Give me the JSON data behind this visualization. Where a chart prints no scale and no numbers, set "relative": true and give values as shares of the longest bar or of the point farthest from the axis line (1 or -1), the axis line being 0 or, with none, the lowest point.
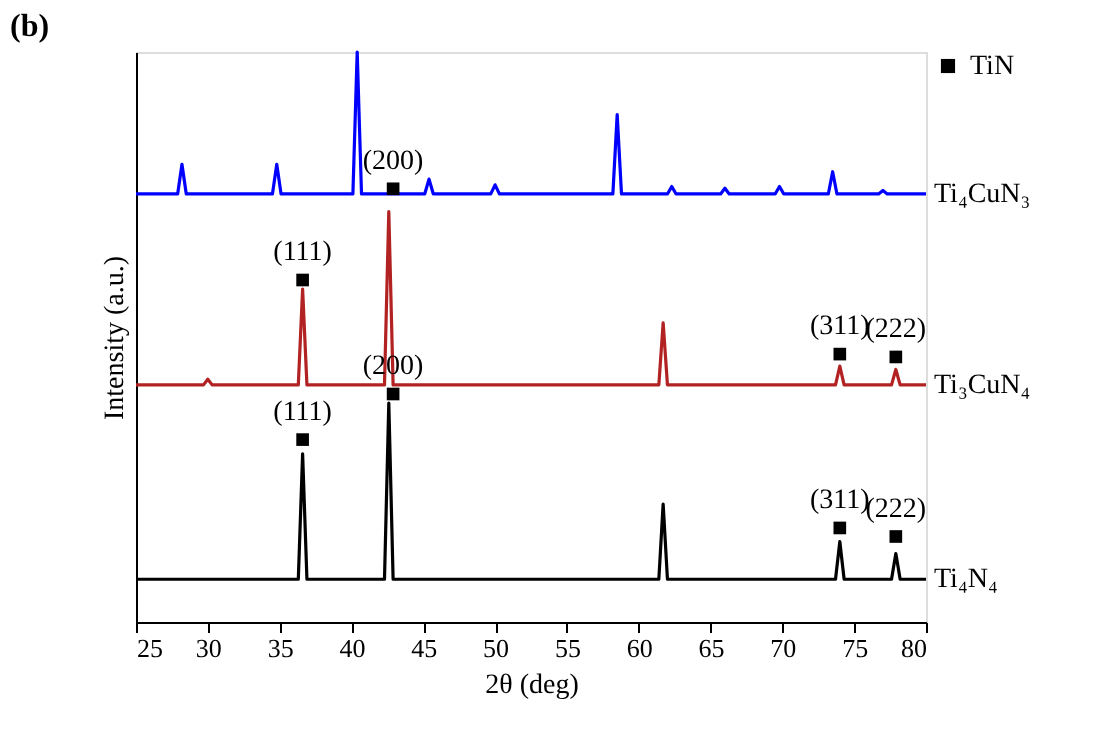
{
  "chart_data": {
    "type": "line",
    "title": "(b)",
    "xlabel": "2θ (deg)",
    "ylabel": "Intensity (a.u.)",
    "relative": true,
    "xlim": [
      25,
      80
    ],
    "xticks": [
      25,
      30,
      35,
      40,
      45,
      50,
      55,
      60,
      65,
      70,
      75,
      80
    ],
    "grid": false,
    "legend": "top right",
    "marker": "none",
    "line_style": "solid",
    "series": [
      {
        "name": "Ti₄CuN₃",
        "color": "#0000ff",
        "x": [
          25,
          27.9,
          28.2,
          28.5,
          34.5,
          34.8,
          35.1,
          40.1,
          40.4,
          40.7,
          45.1,
          45.4,
          45.7,
          49.7,
          50,
          50.3,
          58.2,
          58.5,
          58.8,
          62,
          62.3,
          62.6,
          65.7,
          66,
          66.3,
          69.5,
          69.8,
          70.1,
          73.2,
          73.5,
          73.8,
          76.7,
          77,
          77.3,
          80
        ],
        "values": [
          0.751,
          0.751,
          0.803,
          0.751,
          0.751,
          0.803,
          0.751,
          0.751,
          1.0,
          0.751,
          0.751,
          0.777,
          0.751,
          0.751,
          0.767,
          0.751,
          0.751,
          0.89,
          0.751,
          0.751,
          0.764,
          0.751,
          0.751,
          0.761,
          0.751,
          0.751,
          0.764,
          0.751,
          0.751,
          0.79,
          0.751,
          0.751,
          0.757,
          0.751,
          0.751
        ]
      },
      {
        "name": "Ti₃CuN₄",
        "color": "#b22222",
        "x": [
          25,
          29.7,
          30,
          30.3,
          36.3,
          36.6,
          36.9,
          42.3,
          42.6,
          42.9,
          61.4,
          61.7,
          62,
          73.7,
          74,
          74.3,
          77.6,
          77.9,
          78.2,
          80
        ],
        "values": [
          0.416,
          0.416,
          0.426,
          0.416,
          0.416,
          0.584,
          0.416,
          0.416,
          0.72,
          0.416,
          0.416,
          0.525,
          0.416,
          0.416,
          0.449,
          0.416,
          0.416,
          0.443,
          0.416,
          0.416
        ]
      },
      {
        "name": "Ti₄N₄",
        "color": "#000000",
        "x": [
          25,
          36.3,
          36.6,
          36.9,
          42.3,
          42.6,
          42.9,
          61.4,
          61.7,
          62,
          73.7,
          74,
          74.3,
          77.6,
          77.9,
          78.2,
          80
        ],
        "values": [
          0.075,
          0.075,
          0.295,
          0.075,
          0.075,
          0.384,
          0.075,
          0.075,
          0.207,
          0.075,
          0.075,
          0.141,
          0.075,
          0.075,
          0.12,
          0.075,
          0.075
        ]
      },
      {
        "name": "TiN",
        "type": "scatter",
        "marker": "square",
        "color": "#000000",
        "x": [
          36.6,
          42.9,
          74.0,
          77.9,
          36.6,
          42.9,
          74.0,
          77.9
        ],
        "values": [
          0.6,
          0.76,
          0.47,
          0.465,
          0.32,
          0.4,
          0.165,
          0.15
        ]
      }
    ],
    "annotations": [
      {
        "text": "(111)",
        "x": 36.6,
        "y": 0.6
      },
      {
        "text": "(200)",
        "x": 42.9,
        "y": 0.76
      },
      {
        "text": "(311)",
        "x": 74.0,
        "y": 0.47
      },
      {
        "text": "(222)",
        "x": 77.9,
        "y": 0.465
      },
      {
        "text": "(111)",
        "x": 36.6,
        "y": 0.32
      },
      {
        "text": "(200)",
        "x": 42.9,
        "y": 0.4
      },
      {
        "text": "(311)",
        "x": 74.0,
        "y": 0.165
      },
      {
        "text": "(222)",
        "x": 77.9,
        "y": 0.15
      }
    ]
  }
}
